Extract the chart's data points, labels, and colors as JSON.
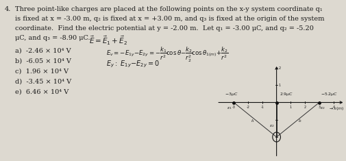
{
  "background_color": "#ddd9d0",
  "text_color": "#1a1a1a",
  "problem_number": "4.",
  "line1": "Three point-like charges are placed at the following points on the x-y system coordinate q₁",
  "line2": "is fixed at x = -3.00 m, q₂ is fixed at x = +3.00 m, and q₃ is fixed at the origin of the system",
  "line3": "coordinate.  Find the electric potential at y = -2.00 m.  Let q₁ = -3.00 μC, and q₂ = -5.20",
  "line4_a": "μC, and q₃ = -8.90 μC.",
  "line4_eq": "$\\vec{E} = \\vec{E}_1 + \\vec{E}_2$",
  "hw_eq1": "$E_v = -E_{1y} - E_{2y} = -\\frac{k_1}{r^2}\\cos\\theta - \\frac{k_2}{r_2^2}\\cos\\theta_{1(m)} + \\frac{k_2}{r^2}$",
  "hw_eq2": "$E_y: E_{1y} - E_{2y} = 0$",
  "answers": [
    "a)  -2.46 × 10⁴ V",
    "b)  -6.05 × 10⁴ V",
    "c)  1.96 × 10⁴ V",
    "d)  -3.45 × 10⁴ V",
    "e)  6.46 × 10⁴ V"
  ],
  "fs": 7.0,
  "fs_eq": 7.5,
  "diagram": {
    "q1_x": -3.0,
    "q1_y": 0.0,
    "q2_x": 3.0,
    "q2_y": 0.0,
    "q3_x": 0.0,
    "q3_y": 0.0,
    "pt_x": 0.0,
    "pt_y": -2.0,
    "xlim": [
      -4.2,
      4.8
    ],
    "ylim": [
      -3.2,
      2.2
    ]
  }
}
